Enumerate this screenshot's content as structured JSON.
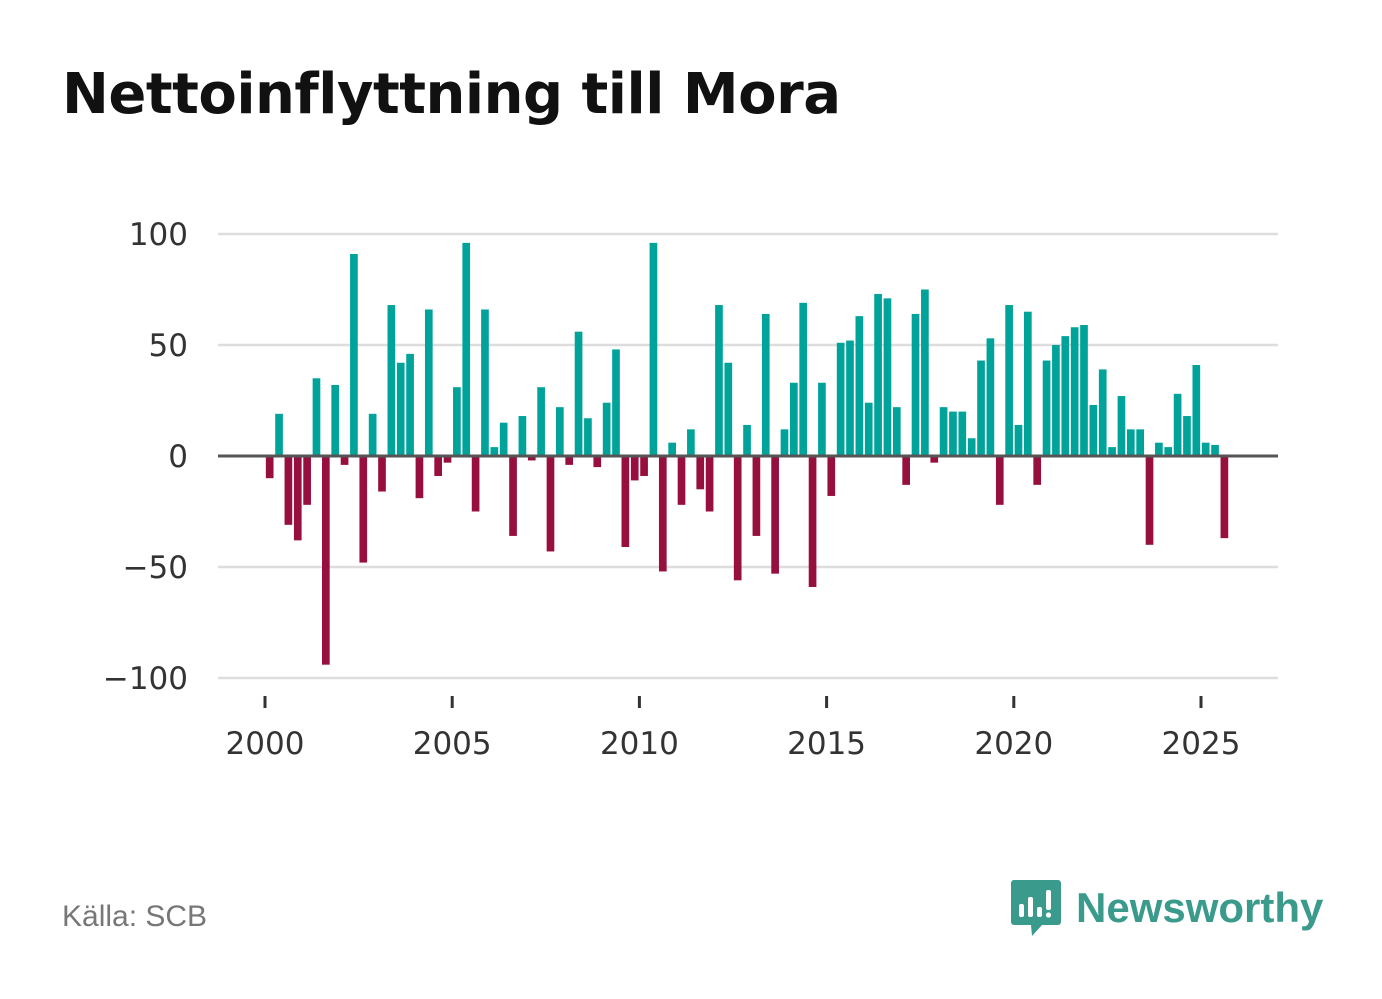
{
  "title": "Nettoinflyttning till Mora",
  "source": "Källa: SCB",
  "logo": {
    "text": "Newsworthy",
    "icon": "newsworthy-chart-bubble-icon"
  },
  "colors": {
    "positive": "#00a39a",
    "negative": "#970f3e",
    "grid": "#dddddd",
    "zero_line": "#555555"
  },
  "chart_data": {
    "type": "bar",
    "title": "Nettoinflyttning till Mora",
    "xlabel": "",
    "ylabel": "",
    "ylim": [
      -100,
      100
    ],
    "yticks": [
      100,
      50,
      0,
      -50,
      -100
    ],
    "ytick_labels": [
      "100",
      "50",
      "0",
      "−50",
      "−100"
    ],
    "xticks": [
      2000,
      2005,
      2010,
      2015,
      2020,
      2025
    ],
    "xtick_labels": [
      "2000",
      "2005",
      "2010",
      "2015",
      "2020",
      "2025"
    ],
    "frequency": "quarterly",
    "start": "2000 Q1",
    "values": [
      -10,
      19,
      -31,
      -38,
      -22,
      35,
      -94,
      32,
      -4,
      91,
      -48,
      19,
      -16,
      68,
      42,
      46,
      -19,
      66,
      -9,
      -3,
      31,
      96,
      -25,
      66,
      4,
      15,
      -36,
      18,
      -2,
      31,
      -43,
      22,
      -4,
      56,
      17,
      -5,
      24,
      48,
      -41,
      -11,
      -9,
      96,
      -52,
      6,
      -22,
      12,
      -15,
      -25,
      68,
      42,
      -56,
      14,
      -36,
      64,
      -53,
      12,
      33,
      69,
      -59,
      33,
      -18,
      51,
      52,
      63,
      24,
      73,
      71,
      22,
      -13,
      64,
      75,
      -3,
      22,
      20,
      20,
      8,
      43,
      53,
      -22,
      68,
      14,
      65,
      -13,
      43,
      50,
      54,
      58,
      59,
      23,
      39,
      4,
      27,
      12,
      12,
      -40,
      6,
      4,
      28,
      18,
      41,
      6,
      5,
      -37
    ]
  }
}
